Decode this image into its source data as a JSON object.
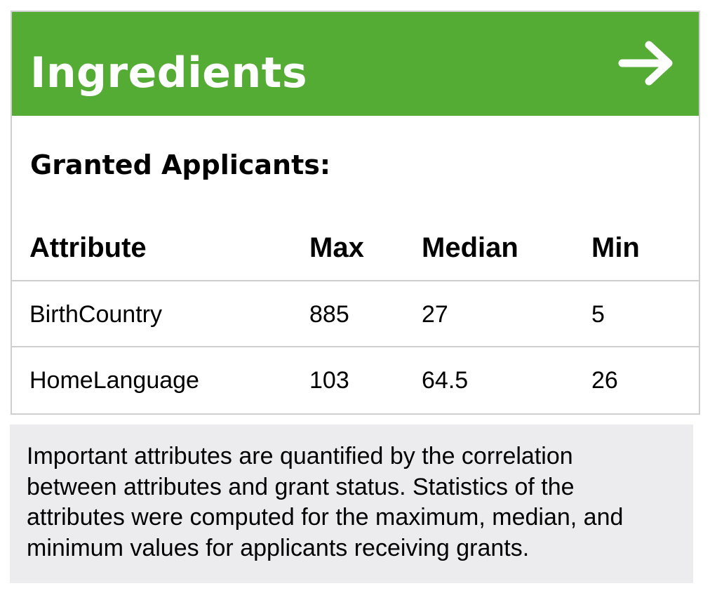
{
  "header": {
    "title": "Ingredients",
    "arrow_icon": "arrow-right-icon",
    "background_color": "#55ac34"
  },
  "section": {
    "subtitle": "Granted Applicants:"
  },
  "table": {
    "columns": [
      "Attribute",
      "Max",
      "Median",
      "Min"
    ],
    "rows": [
      {
        "attribute": "BirthCountry",
        "max": "885",
        "median": "27",
        "min": "5"
      },
      {
        "attribute": "HomeLanguage",
        "max": "103",
        "median": "64.5",
        "min": "26"
      }
    ]
  },
  "note": {
    "text": "Important attributes are quantified by the correlation between attributes and grant status. Statistics of the attributes were computed for the maximum, median, and minimum values for applicants receiving grants."
  }
}
